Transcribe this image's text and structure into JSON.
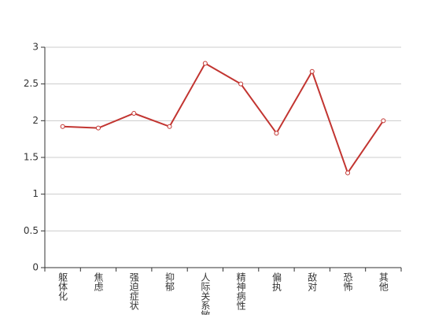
{
  "chart_data": {
    "type": "line",
    "categories": [
      "躯体化",
      "焦虑",
      "强迫症状",
      "抑郁",
      "人际关系敏感",
      "精神病性",
      "偏执",
      "敌对",
      "恐怖",
      "其他"
    ],
    "values": [
      1.92,
      1.9,
      2.1,
      1.92,
      2.78,
      2.5,
      1.83,
      2.67,
      1.29,
      2.0
    ],
    "color": "#c23531",
    "ylim": [
      0,
      3
    ],
    "yticks": [
      0,
      0.5,
      1,
      1.5,
      2,
      2.5,
      3
    ],
    "grid": true
  }
}
